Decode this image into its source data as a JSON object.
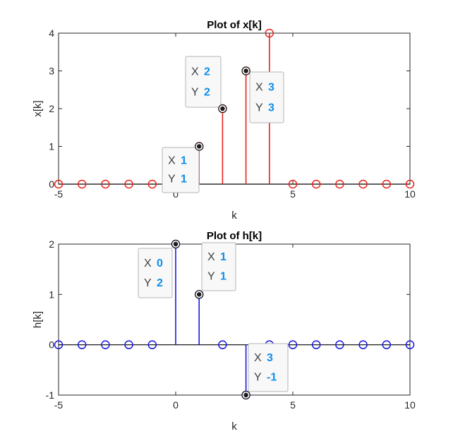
{
  "chart_data": [
    {
      "type": "stem",
      "title": "Plot of x[k]",
      "xlabel": "k",
      "ylabel": "x[k]",
      "xlim": [
        -5,
        10
      ],
      "ylim": [
        0,
        4
      ],
      "xticks": [
        -5,
        0,
        5,
        10
      ],
      "yticks": [
        0,
        1,
        2,
        3,
        4
      ],
      "color": "#e8221c",
      "series": [
        {
          "x": [
            -5,
            -4,
            -3,
            -2,
            -1,
            0,
            1,
            2,
            3,
            4,
            5,
            6,
            7,
            8,
            9,
            10
          ],
          "y": [
            0,
            0,
            0,
            0,
            0,
            0,
            1,
            2,
            3,
            4,
            0,
            0,
            0,
            0,
            0,
            0
          ]
        }
      ],
      "datatips": [
        {
          "x": 1,
          "y": 1,
          "key_x": "X",
          "key_y": "Y",
          "label_x": "1",
          "label_y": "1"
        },
        {
          "x": 2,
          "y": 2,
          "key_x": "X",
          "key_y": "Y",
          "label_x": "2",
          "label_y": "2"
        },
        {
          "x": 3,
          "y": 3,
          "key_x": "X",
          "key_y": "Y",
          "label_x": "3",
          "label_y": "3"
        }
      ]
    },
    {
      "type": "stem",
      "title": "Plot of h[k]",
      "xlabel": "k",
      "ylabel": "h[k]",
      "xlim": [
        -5,
        10
      ],
      "ylim": [
        -1,
        2
      ],
      "xticks": [
        -5,
        0,
        5,
        10
      ],
      "yticks": [
        -1,
        0,
        1,
        2
      ],
      "color": "#1818e0",
      "series": [
        {
          "x": [
            -5,
            -4,
            -3,
            -2,
            -1,
            0,
            1,
            2,
            3,
            4,
            5,
            6,
            7,
            8,
            9,
            10
          ],
          "y": [
            0,
            0,
            0,
            0,
            0,
            2,
            1,
            0,
            -1,
            0,
            0,
            0,
            0,
            0,
            0,
            0
          ]
        }
      ],
      "datatips": [
        {
          "x": 0,
          "y": 2,
          "key_x": "X",
          "key_y": "Y",
          "label_x": "0",
          "label_y": "2"
        },
        {
          "x": 1,
          "y": 1,
          "key_x": "X",
          "key_y": "Y",
          "label_x": "1",
          "label_y": "1"
        },
        {
          "x": 3,
          "y": -1,
          "key_x": "X",
          "key_y": "Y",
          "label_x": "3",
          "label_y": "-1"
        }
      ]
    }
  ]
}
